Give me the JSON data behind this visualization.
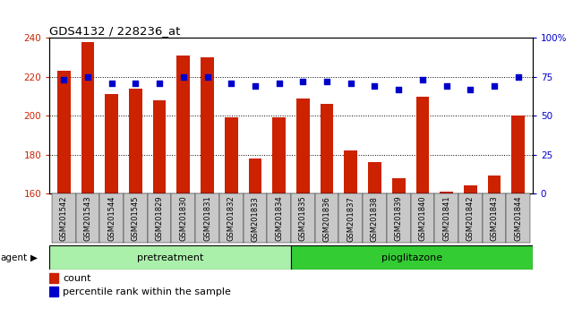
{
  "title": "GDS4132 / 228236_at",
  "samples": [
    "GSM201542",
    "GSM201543",
    "GSM201544",
    "GSM201545",
    "GSM201829",
    "GSM201830",
    "GSM201831",
    "GSM201832",
    "GSM201833",
    "GSM201834",
    "GSM201835",
    "GSM201836",
    "GSM201837",
    "GSM201838",
    "GSM201839",
    "GSM201840",
    "GSM201841",
    "GSM201842",
    "GSM201843",
    "GSM201844"
  ],
  "bar_values": [
    223,
    238,
    211,
    214,
    208,
    231,
    230,
    199,
    178,
    199,
    209,
    206,
    182,
    176,
    168,
    210,
    161,
    164,
    169,
    200
  ],
  "percentile_values": [
    73,
    75,
    71,
    71,
    71,
    75,
    75,
    71,
    69,
    71,
    72,
    72,
    71,
    69,
    67,
    73,
    69,
    67,
    69,
    75
  ],
  "bar_color": "#cc2200",
  "dot_color": "#0000cc",
  "ylim_left": [
    160,
    240
  ],
  "ylim_right": [
    0,
    100
  ],
  "yticks_left": [
    160,
    180,
    200,
    220,
    240
  ],
  "yticks_right": [
    0,
    25,
    50,
    75,
    100
  ],
  "ytick_labels_right": [
    "0",
    "25",
    "50",
    "75",
    "100%"
  ],
  "pretreatment_samples": 10,
  "pioglitazone_samples": 10,
  "pretreatment_color": "#aaf0aa",
  "pioglitazone_color": "#33cc33",
  "legend_count_label": "count",
  "legend_pct_label": "percentile rank within the sample",
  "agent_label": "agent",
  "pretreatment_label": "pretreatment",
  "pioglitazone_label": "pioglitazone",
  "bar_width": 0.55,
  "tick_color_left": "#cc2200",
  "tick_color_right": "#0000cc",
  "xticklabel_bg": "#c8c8c8"
}
